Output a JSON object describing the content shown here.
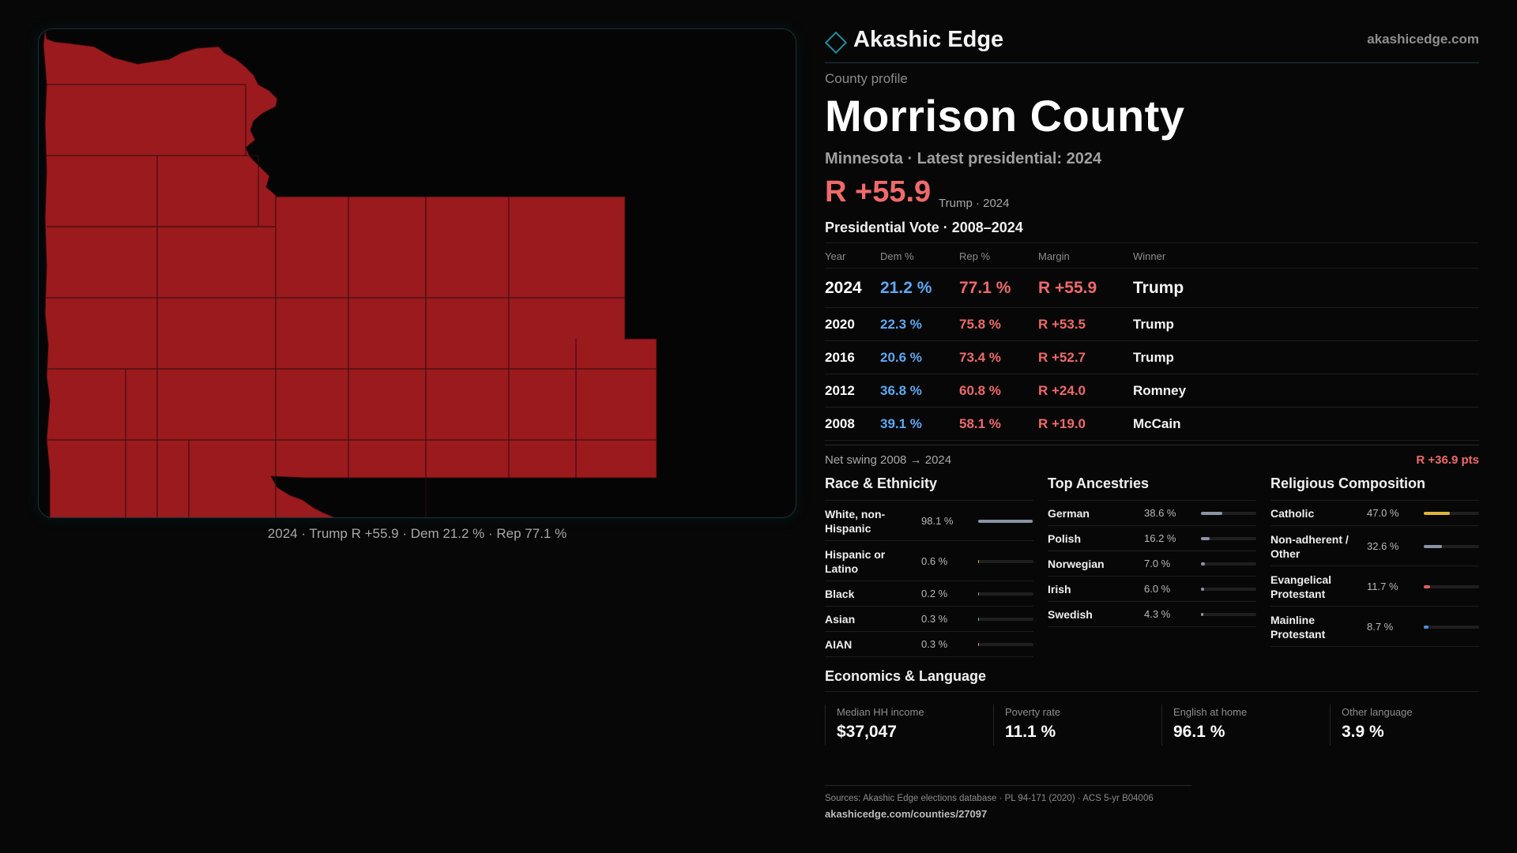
{
  "brand": {
    "name": "Akashic Edge",
    "url": "akashicedge.com",
    "icon": "diamond-outline-icon",
    "accent": "#1d8fa0"
  },
  "map": {
    "caption": "2024 · Trump R +55.9 · Dem 21.2 % · Rep 77.1 %",
    "fill_color": "#9a1a1e",
    "border_color": "#2e0a0b"
  },
  "profile": {
    "kicker": "County profile",
    "title": "Morrison County",
    "subtitle": "Minnesota · Latest presidential: 2024",
    "headline_margin": "R +55.9",
    "headline_sub": "Trump · 2024"
  },
  "vote": {
    "title": "Presidential Vote · 2008–2024",
    "headers": {
      "year": "Year",
      "dem": "Dem %",
      "rep": "Rep %",
      "margin": "Margin",
      "winner": "Winner"
    },
    "rows": [
      {
        "year": "2024",
        "dem": "21.2 %",
        "rep": "77.1 %",
        "margin": "R +55.9",
        "winner": "Trump"
      },
      {
        "year": "2020",
        "dem": "22.3 %",
        "rep": "75.8 %",
        "margin": "R +53.5",
        "winner": "Trump"
      },
      {
        "year": "2016",
        "dem": "20.6 %",
        "rep": "73.4 %",
        "margin": "R +52.7",
        "winner": "Trump"
      },
      {
        "year": "2012",
        "dem": "36.8 %",
        "rep": "60.8 %",
        "margin": "R +24.0",
        "winner": "Romney"
      },
      {
        "year": "2008",
        "dem": "39.1 %",
        "rep": "58.1 %",
        "margin": "R +19.0",
        "winner": "McCain"
      }
    ],
    "swing_label": "Net swing 2008 → 2024",
    "swing_value": "R +36.9 pts"
  },
  "race": {
    "title": "Race & Ethnicity",
    "items": [
      {
        "label": "White, non-Hispanic",
        "value": "98.1 %",
        "pct": 98.1,
        "color": "#8a94a6",
        "tall": true
      },
      {
        "label": "Hispanic or Latino",
        "value": "0.6 %",
        "pct": 0.6,
        "color": "#d9a441",
        "tall": true
      },
      {
        "label": "Black",
        "value": "0.2 %",
        "pct": 0.2,
        "color": "#8a94a6",
        "tall": false
      },
      {
        "label": "Asian",
        "value": "0.3 %",
        "pct": 0.3,
        "color": "#4cc3a0",
        "tall": false
      },
      {
        "label": "AIAN",
        "value": "0.3 %",
        "pct": 0.3,
        "color": "#d98a41",
        "tall": false
      }
    ]
  },
  "ancestry": {
    "title": "Top Ancestries",
    "items": [
      {
        "label": "German",
        "value": "38.6 %",
        "pct": 38.6,
        "color": "#8a94a6",
        "tall": false
      },
      {
        "label": "Polish",
        "value": "16.2 %",
        "pct": 16.2,
        "color": "#8a94a6",
        "tall": false
      },
      {
        "label": "Norwegian",
        "value": "7.0 %",
        "pct": 7.0,
        "color": "#8a94a6",
        "tall": false
      },
      {
        "label": "Irish",
        "value": "6.0 %",
        "pct": 6.0,
        "color": "#8a94a6",
        "tall": false
      },
      {
        "label": "Swedish",
        "value": "4.3 %",
        "pct": 4.3,
        "color": "#8a94a6",
        "tall": false
      }
    ]
  },
  "religion": {
    "title": "Religious Composition",
    "items": [
      {
        "label": "Catholic",
        "value": "47.0 %",
        "pct": 47.0,
        "color": "#e0b43a",
        "tall": false
      },
      {
        "label": "Non-adherent / Other",
        "value": "32.6 %",
        "pct": 32.6,
        "color": "#8a94a6",
        "tall": true
      },
      {
        "label": "Evangelical Protestant",
        "value": "11.7 %",
        "pct": 11.7,
        "color": "#e06060",
        "tall": true
      },
      {
        "label": "Mainline Protestant",
        "value": "8.7 %",
        "pct": 8.7,
        "color": "#4a90e2",
        "tall": true
      }
    ]
  },
  "economics": {
    "title": "Economics & Language",
    "cells": [
      {
        "label": "Median HH income",
        "value": "$37,047"
      },
      {
        "label": "Poverty rate",
        "value": "11.1 %"
      },
      {
        "label": "English at home",
        "value": "96.1 %"
      },
      {
        "label": "Other language",
        "value": "3.9 %"
      }
    ]
  },
  "sources": {
    "line": "Sources: Akashic Edge elections database · PL 94-171 (2020) · ACS 5-yr B04006",
    "url": "akashicedge.com/counties/27097"
  }
}
